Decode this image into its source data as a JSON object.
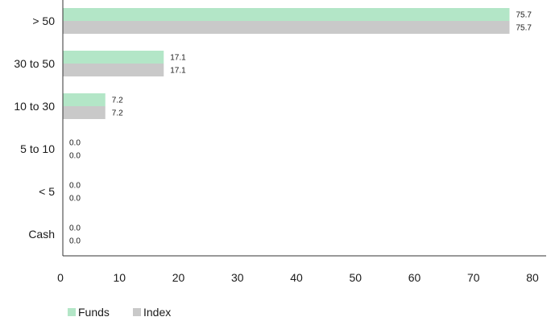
{
  "chart_data": {
    "type": "bar",
    "orientation": "horizontal",
    "categories": [
      "> 50",
      "30 to 50",
      "10 to 30",
      "5 to 10",
      "< 5",
      "Cash"
    ],
    "series": [
      {
        "name": "Funds",
        "values": [
          75.7,
          17.1,
          7.2,
          0.0,
          0.0,
          0.0
        ],
        "color": "#b3e6c7"
      },
      {
        "name": "Index",
        "values": [
          75.7,
          17.1,
          7.2,
          0.0,
          0.0,
          0.0
        ],
        "color": "#c9c9c9"
      }
    ],
    "x_ticks": [
      0,
      10,
      20,
      30,
      40,
      50,
      60,
      70,
      80
    ],
    "xlim": [
      0,
      80
    ],
    "data_label_precision": 1,
    "grid": false,
    "legend": "bottom-left",
    "axis_color": "#333333"
  }
}
